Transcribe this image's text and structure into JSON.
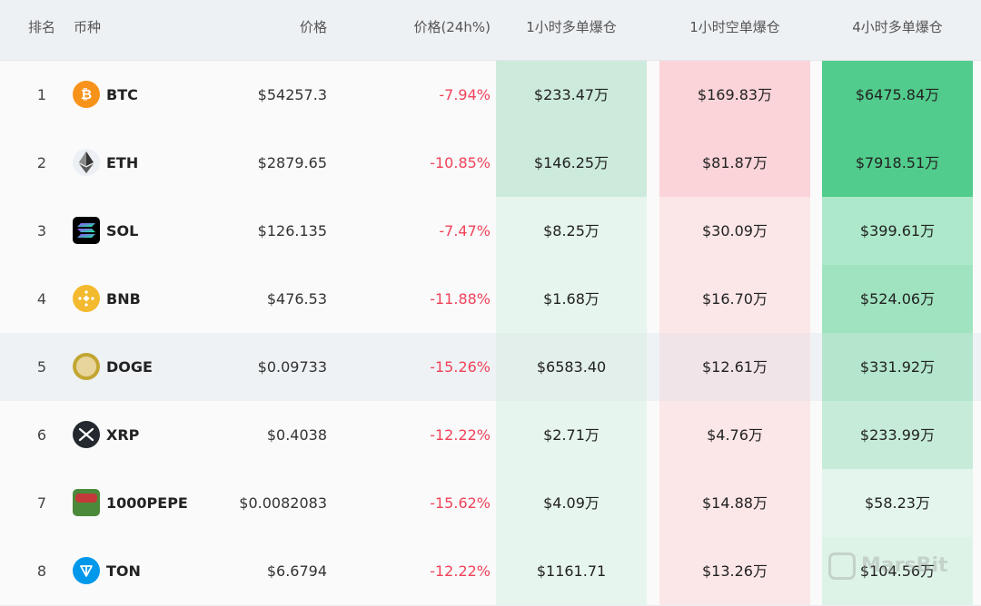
{
  "headers": {
    "rank": "排名",
    "coin": "币种",
    "price": "价格",
    "change": "价格(24h%)",
    "long_1h": "1小时多单爆仓",
    "short_1h": "1小时空单爆仓",
    "long_4h": "4小时多单爆仓"
  },
  "rows": [
    {
      "rank": "1",
      "symbol": "BTC",
      "icon": "bitcoin-icon",
      "price": "$54257.3",
      "change": "-7.94%",
      "long_1h": "$233.47万",
      "short_1h": "$169.83万",
      "long_4h": "$6475.84万"
    },
    {
      "rank": "2",
      "symbol": "ETH",
      "icon": "ethereum-icon",
      "price": "$2879.65",
      "change": "-10.85%",
      "long_1h": "$146.25万",
      "short_1h": "$81.87万",
      "long_4h": "$7918.51万"
    },
    {
      "rank": "3",
      "symbol": "SOL",
      "icon": "solana-icon",
      "price": "$126.135",
      "change": "-7.47%",
      "long_1h": "$8.25万",
      "short_1h": "$30.09万",
      "long_4h": "$399.61万"
    },
    {
      "rank": "4",
      "symbol": "BNB",
      "icon": "bnb-icon",
      "price": "$476.53",
      "change": "-11.88%",
      "long_1h": "$1.68万",
      "short_1h": "$16.70万",
      "long_4h": "$524.06万"
    },
    {
      "rank": "5",
      "symbol": "DOGE",
      "icon": "dogecoin-icon",
      "price": "$0.09733",
      "change": "-15.26%",
      "long_1h": "$6583.40",
      "short_1h": "$12.61万",
      "long_4h": "$331.92万"
    },
    {
      "rank": "6",
      "symbol": "XRP",
      "icon": "xrp-icon",
      "price": "$0.4038",
      "change": "-12.22%",
      "long_1h": "$2.71万",
      "short_1h": "$4.76万",
      "long_4h": "$233.99万"
    },
    {
      "rank": "7",
      "symbol": "1000PEPE",
      "icon": "pepe-icon",
      "price": "$0.0082083",
      "change": "-15.62%",
      "long_1h": "$4.09万",
      "short_1h": "$14.88万",
      "long_4h": "$58.23万"
    },
    {
      "rank": "8",
      "symbol": "TON",
      "icon": "toncoin-icon",
      "price": "$6.6794",
      "change": "-12.22%",
      "long_1h": "$1161.71",
      "short_1h": "$13.26万",
      "long_4h": "$104.56万"
    }
  ],
  "colors": {
    "negative": "#f0435a",
    "long_1h_bg": [
      "#cdebdc",
      "#cdebdc",
      "#e6f5ed",
      "#e6f5ed",
      "#e6f5ed",
      "#e6f5ed",
      "#e6f5ed",
      "#e6f5ed"
    ],
    "short_1h_bg": [
      "#fad4d8",
      "#fad4d8",
      "#fbe6e8",
      "#fbe6e8",
      "#fbe6e8",
      "#fbe6e8",
      "#fbe6e8",
      "#fbe6e8"
    ],
    "long_4h_bg": [
      "#52cc8c",
      "#52cc8c",
      "#ace8c9",
      "#a0e3c0",
      "#b3e6cc",
      "#c6ecd9",
      "#e3f5ec",
      "#ddf3e7"
    ]
  },
  "watermark": "MarsBit"
}
